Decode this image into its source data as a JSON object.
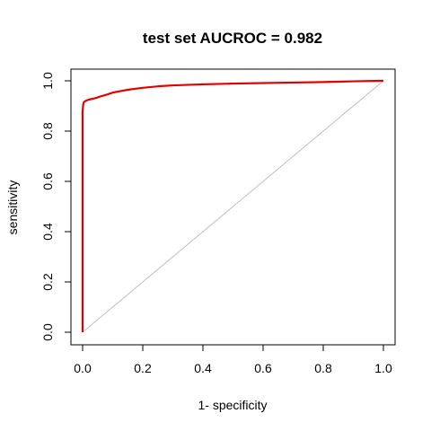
{
  "chart_data": {
    "type": "line",
    "title": "test set AUCROC = 0.982",
    "xlabel": "1- specificity",
    "ylabel": "sensitivity",
    "xlim": [
      0,
      1
    ],
    "ylim": [
      0,
      1
    ],
    "x_ticks": [
      0.0,
      0.2,
      0.4,
      0.6,
      0.8,
      1.0
    ],
    "y_ticks": [
      0.0,
      0.2,
      0.4,
      0.6,
      0.8,
      1.0
    ],
    "x_tick_labels": [
      "0.0",
      "0.2",
      "0.4",
      "0.6",
      "0.8",
      "1.0"
    ],
    "y_tick_labels": [
      "0.0",
      "0.2",
      "0.4",
      "0.6",
      "0.8",
      "1.0"
    ],
    "grid": false,
    "colors": {
      "roc": "#e00000",
      "reference": "#bebebe",
      "axis": "#000000"
    },
    "series": [
      {
        "values": [
          [
            0.0,
            0.0
          ],
          [
            0.0,
            0.88
          ],
          [
            0.002,
            0.905
          ],
          [
            0.004,
            0.915
          ],
          [
            0.01,
            0.92
          ],
          [
            0.02,
            0.925
          ],
          [
            0.04,
            0.93
          ],
          [
            0.06,
            0.938
          ],
          [
            0.08,
            0.945
          ],
          [
            0.1,
            0.953
          ],
          [
            0.13,
            0.96
          ],
          [
            0.16,
            0.966
          ],
          [
            0.2,
            0.972
          ],
          [
            0.25,
            0.978
          ],
          [
            0.3,
            0.982
          ],
          [
            0.4,
            0.986
          ],
          [
            0.5,
            0.989
          ],
          [
            0.6,
            0.991
          ],
          [
            0.7,
            0.993
          ],
          [
            0.8,
            0.995
          ],
          [
            0.9,
            0.998
          ],
          [
            0.95,
            0.999
          ],
          [
            1.0,
            1.0
          ]
        ]
      }
    ],
    "reference_line": [
      [
        0.0,
        0.0
      ],
      [
        1.0,
        1.0
      ]
    ]
  }
}
